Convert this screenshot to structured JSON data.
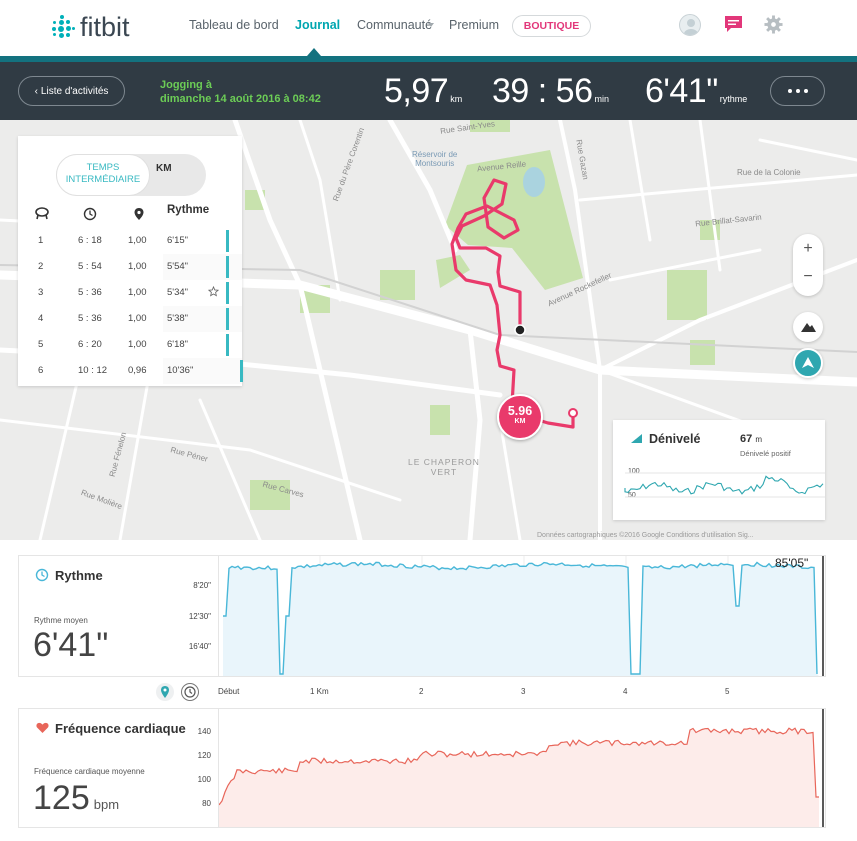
{
  "nav": {
    "logo": "fitbit",
    "items": [
      "Tableau de bord",
      "Journal",
      "Communauté",
      "Premium"
    ],
    "shop": "BOUTIQUE",
    "active": "Journal"
  },
  "activity": {
    "back_label": "Liste d'activités",
    "title_line1": "Jogging à",
    "title_line2": "dimanche 14 août 2016 à 08:42",
    "distance": "5,97",
    "distance_unit": "km",
    "duration": "39 : 56",
    "duration_unit": "min",
    "pace": "6'41\"",
    "pace_unit": "rythme"
  },
  "splits": {
    "toggle_split": "TEMPS INTERMÉDIAIRE",
    "toggle_km": "KM",
    "pace_header": "Rythme",
    "rows": [
      {
        "n": "1",
        "time": "6 : 18",
        "dist": "1,00",
        "pace": "6'15\""
      },
      {
        "n": "2",
        "time": "5 : 54",
        "dist": "1,00",
        "pace": "5'54\""
      },
      {
        "n": "3",
        "time": "5 : 36",
        "dist": "1,00",
        "pace": "5'34\""
      },
      {
        "n": "4",
        "time": "5 : 36",
        "dist": "1,00",
        "pace": "5'38\""
      },
      {
        "n": "5",
        "time": "6 : 20",
        "dist": "1,00",
        "pace": "6'18\""
      },
      {
        "n": "6",
        "time": "10 : 12",
        "dist": "0,96",
        "pace": "10'36\""
      }
    ]
  },
  "map": {
    "pin_value": "5.96",
    "pin_unit": "KM",
    "labels": {
      "rue_saint_yves": "Rue Saint-Yves",
      "reservoir": "Réservoir de\nMontsouris",
      "avenue_reille": "Avenue Reille",
      "rue_de_la_colonie": "Rue de la Colonie",
      "rue_brillat": "Rue Brillat-Savarin",
      "chaperon": "LE CHAPERON\nVERT",
      "rue_penel": "Rue Péner",
      "rue_carves": "Rue Carves",
      "rue_moliere": "Rue Molière",
      "rue_fenelon": "Rue Fénelon",
      "rue_gaudon": "Rue Gazan",
      "avenue_rockefeller": "Avenue Rockefeller",
      "rue_du_pere_corentin": "Rue du Père Corentin",
      "copyright": "Données cartographiques ©2016 Google   Conditions d'utilisation   Sig..."
    },
    "elevation": {
      "title": "Dénivelé",
      "value": "67",
      "unit": "m",
      "sub": "Dénivelé positif",
      "tick_top": "100",
      "tick_bottom": "50"
    }
  },
  "pace_chart": {
    "title": "Rythme",
    "avg_label": "Rythme moyen",
    "avg_value": "6'41\"",
    "max_label": "85'05\"",
    "yticks": [
      "8'20\"",
      "12'30\"",
      "16'40\""
    ]
  },
  "xaxis": {
    "ticks": [
      "Début",
      "1 Km",
      "2",
      "3",
      "4",
      "5"
    ]
  },
  "hr_chart": {
    "title": "Fréquence cardiaque",
    "avg_label": "Fréquence cardiaque moyenne",
    "avg_value": "125",
    "avg_unit": "bpm",
    "yticks": [
      "140",
      "120",
      "100",
      "80"
    ]
  },
  "colors": {
    "teal": "#00b0b9",
    "route": "#e93a6b",
    "pace_line": "#49b7d8",
    "hr_line": "#e8665a",
    "dark_bar": "#303b44",
    "green_title": "#6ccd56"
  }
}
